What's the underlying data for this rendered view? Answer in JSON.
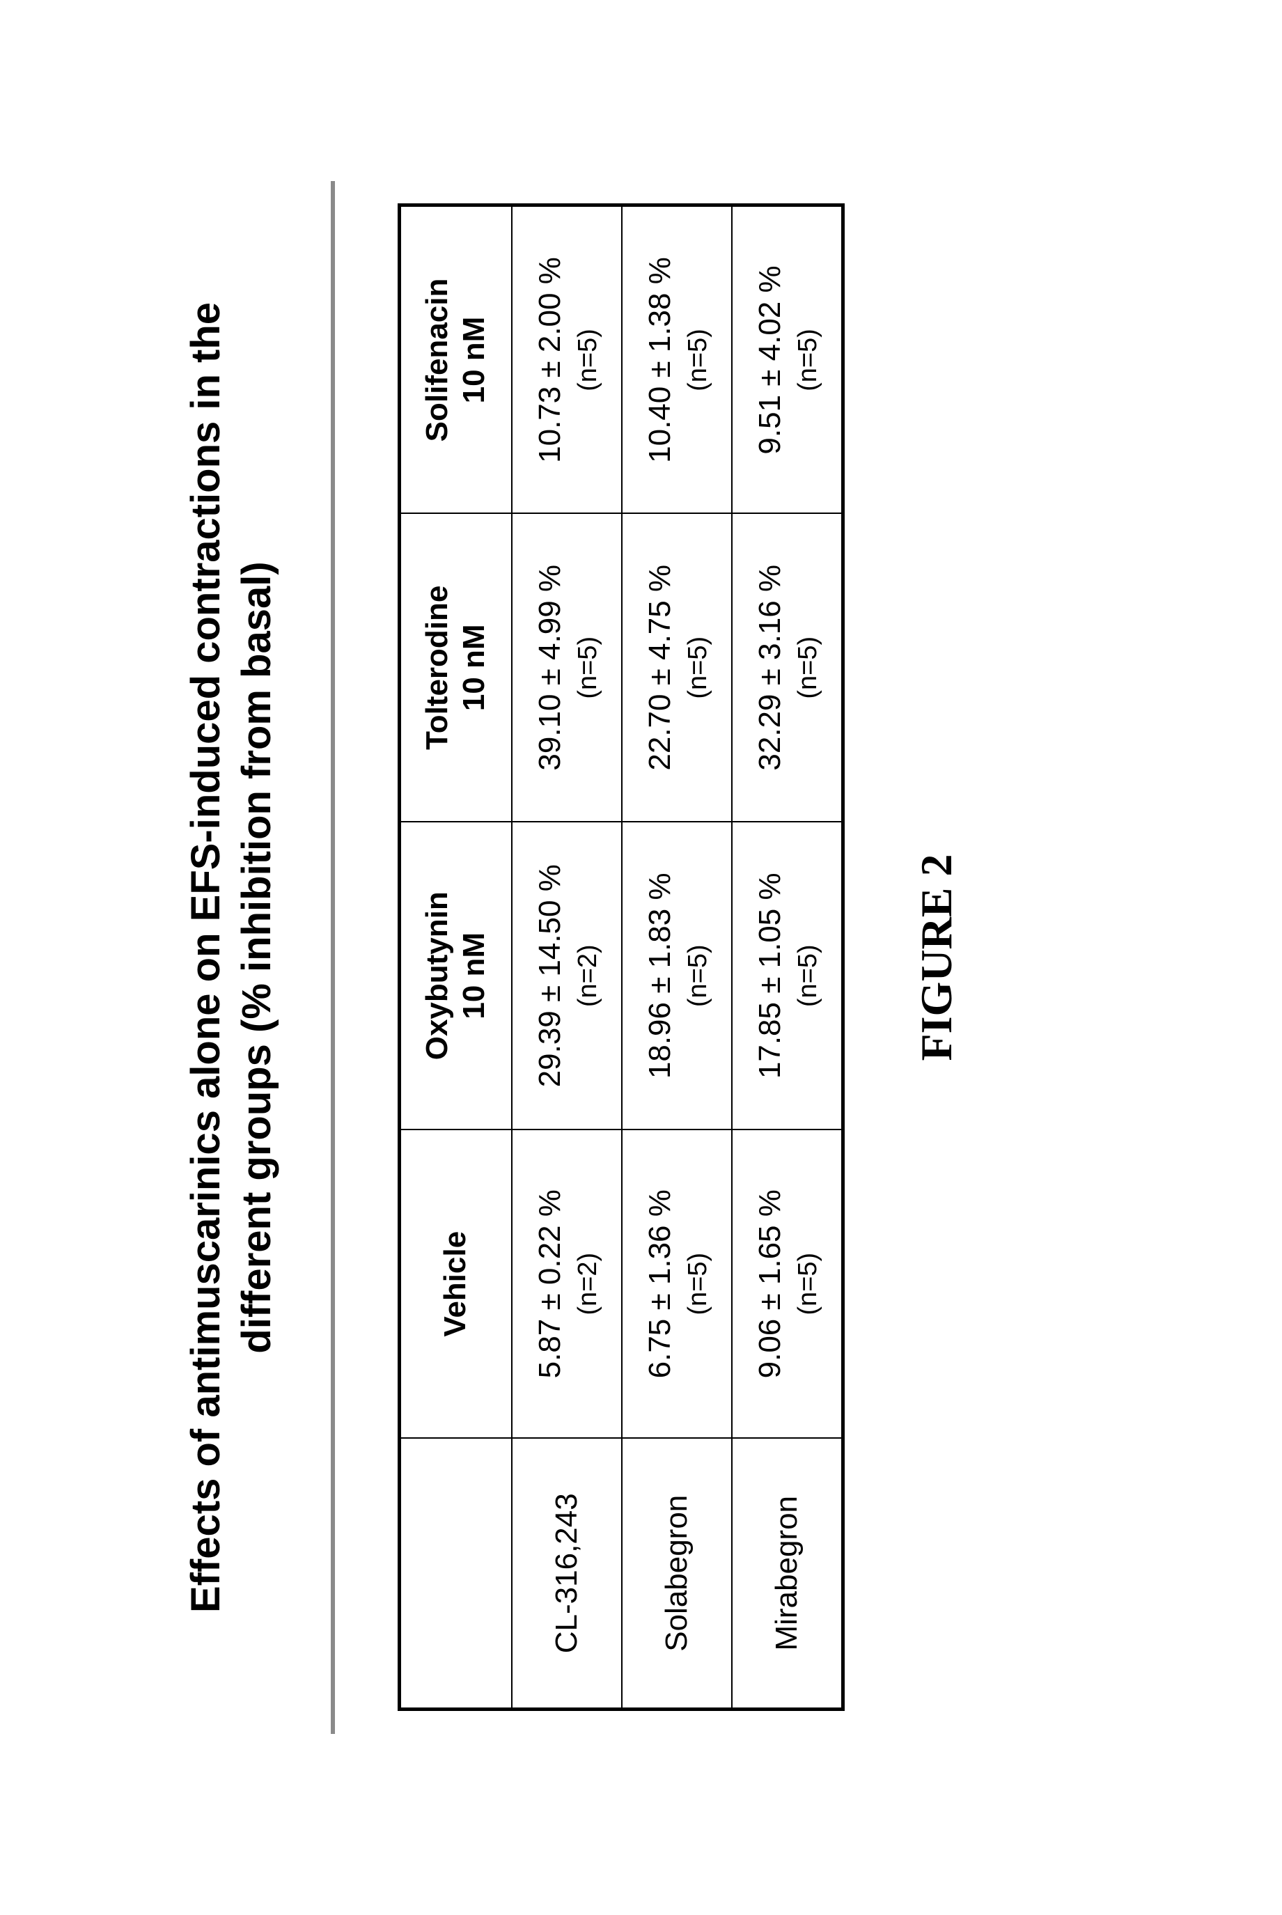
{
  "title_line1": "Effects of antimuscarinics alone on EFS-induced contractions in the",
  "title_line2": "different groups (%  inhibition from basal)",
  "figure_label": "FIGURE 2",
  "table": {
    "corner": "",
    "columns": [
      {
        "name": "Vehicle",
        "sub": ""
      },
      {
        "name": "Oxybutynin",
        "sub": "10 nM"
      },
      {
        "name": "Tolterodine",
        "sub": "10 nM"
      },
      {
        "name": "Solifenacin",
        "sub": "10 nM"
      }
    ],
    "rows": [
      {
        "label": "CL-316,243",
        "cells": [
          {
            "value": "5.87 ± 0.22 %",
            "n": "(n=2)"
          },
          {
            "value": "29.39 ± 14.50 %",
            "n": "(n=2)"
          },
          {
            "value": "39.10 ± 4.99 %",
            "n": "(n=5)"
          },
          {
            "value": "10.73 ± 2.00 %",
            "n": "(n=5)"
          }
        ]
      },
      {
        "label": "Solabegron",
        "cells": [
          {
            "value": "6.75 ± 1.36 %",
            "n": "(n=5)"
          },
          {
            "value": "18.96 ± 1.83 %",
            "n": "(n=5)"
          },
          {
            "value": "22.70 ± 4.75 %",
            "n": "(n=5)"
          },
          {
            "value": "10.40 ± 1.38 %",
            "n": "(n=5)"
          }
        ]
      },
      {
        "label": "Mirabegron",
        "cells": [
          {
            "value": "9.06 ± 1.65 %",
            "n": "(n=5)"
          },
          {
            "value": "17.85 ± 1.05 %",
            "n": "(n=5)"
          },
          {
            "value": "32.29 ± 3.16 %",
            "n": "(n=5)"
          },
          {
            "value": "9.51 ± 4.02 %",
            "n": "(n=5)"
          }
        ]
      }
    ]
  }
}
